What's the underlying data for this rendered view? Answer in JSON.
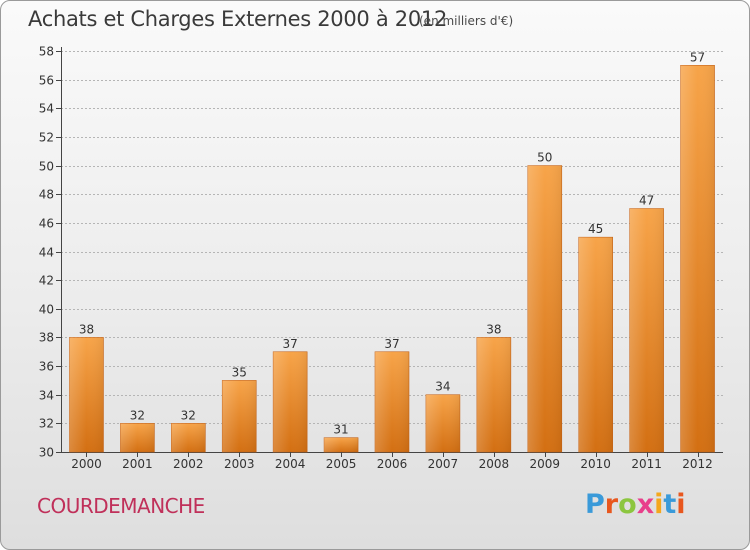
{
  "header": {
    "title": "Achats et Charges Externes 2000 à 2012",
    "subtitle": "(en milliers d'€)"
  },
  "footer": {
    "commune": "COURDEMANCHE",
    "logo_text": "Proxiti"
  },
  "colors": {
    "bar_light": "#f7a449",
    "bar_dark": "#d36f12",
    "grid": "#b5b5b5",
    "axis": "#444444",
    "commune": "#c0305a",
    "logo_letters": [
      "#3a9ad9",
      "#e8571e",
      "#8cc63f",
      "#e83f8b",
      "#f4a71d",
      "#3a9ad9",
      "#e8571e"
    ]
  },
  "chart_data": {
    "type": "bar",
    "title": "Achats et Charges Externes 2000 à 2012",
    "subtitle": "(en milliers d'€)",
    "categories": [
      "2000",
      "2001",
      "2002",
      "2003",
      "2004",
      "2005",
      "2006",
      "2007",
      "2008",
      "2009",
      "2010",
      "2011",
      "2012"
    ],
    "values": [
      38,
      32,
      32,
      35,
      37,
      31,
      37,
      34,
      38,
      50,
      45,
      47,
      57
    ],
    "ylim": [
      30,
      58
    ],
    "yticks": [
      30,
      32,
      34,
      36,
      38,
      40,
      42,
      44,
      46,
      48,
      50,
      52,
      54,
      56,
      58
    ],
    "grid": true,
    "data_labels": true
  }
}
